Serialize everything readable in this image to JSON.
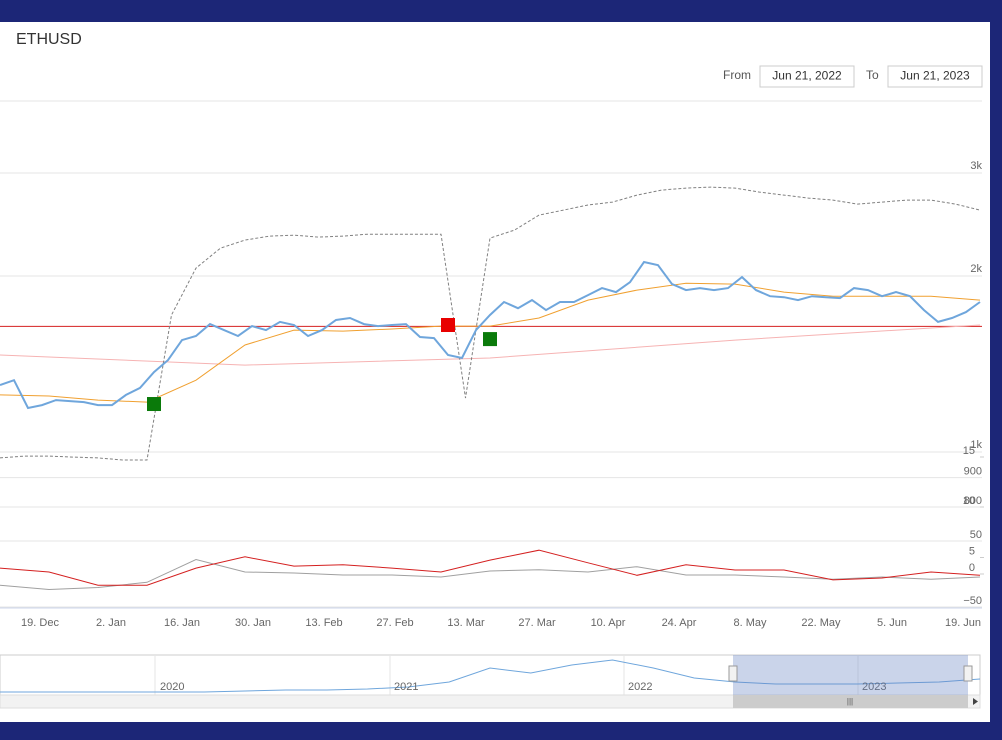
{
  "header": {
    "title": "ETHUSD",
    "from_label": "From",
    "from_date": "Jun 21, 2022",
    "to_label": "To",
    "to_date": "Jun 21, 2023"
  },
  "chart_data": [
    {
      "type": "line",
      "log_scale": true,
      "ylim": [
        1000,
        4000
      ],
      "yticks": [
        {
          "value": 1000,
          "label": "1k"
        },
        {
          "value": 2000,
          "label": "2k"
        },
        {
          "value": 3000,
          "label": "3k"
        }
      ],
      "xticks": [
        "19. Dec",
        "2. Jan",
        "16. Jan",
        "30. Jan",
        "13. Feb",
        "27. Feb",
        "13. Mar",
        "27. Mar",
        "10. Apr",
        "24. Apr",
        "8. May",
        "22. May",
        "5. Jun",
        "19. Jun"
      ],
      "hline": {
        "value": 1640,
        "color": "#d42020"
      },
      "series": [
        {
          "color": "#f6b3b3",
          "values": [
            1465,
            1408,
            1448,
            1554,
            1649
          ]
        },
        {
          "color": "#808080",
          "dash": true,
          "values": [
            977,
            984,
            984,
            980,
            977,
            969,
            969,
            1715,
            2063,
            2232,
            2304,
            2340,
            2349,
            2331,
            2340,
            2358,
            2358,
            2358,
            2358,
            1237,
            2322,
            2396,
            2542,
            2593,
            2645,
            2676,
            2750,
            2805,
            2827,
            2838,
            2827,
            2783,
            2750,
            2718,
            2697,
            2655,
            2676,
            2697,
            2697,
            2655,
            2593
          ]
        },
        {
          "color": "#f0a030",
          "values": [
            1252,
            1247,
            1227,
            1217,
            1327,
            1524,
            1616,
            1610,
            1623,
            1642,
            1642,
            1695,
            1819,
            1892,
            1944,
            1937,
            1877,
            1847,
            1847,
            1847,
            1819
          ]
        },
        {
          "color": "#6fa6dc",
          "width": 2,
          "values": [
            1302,
            1327,
            1189,
            1203,
            1227,
            1222,
            1217,
            1203,
            1203,
            1252,
            1287,
            1370,
            1436,
            1554,
            1579,
            1655,
            1616,
            1579,
            1642,
            1616,
            1669,
            1649,
            1579,
            1616,
            1682,
            1695,
            1655,
            1642,
            1649,
            1655,
            1573,
            1566,
            1465,
            1448,
            1616,
            1715,
            1805,
            1762,
            1819,
            1749,
            1805,
            1805,
            1855,
            1907,
            1877,
            1952,
            2113,
            2088,
            1937,
            1892,
            1907,
            1892,
            1907,
            1991,
            1892,
            1847,
            1840,
            1819,
            1847,
            1840,
            1833,
            1907,
            1892,
            1847,
            1877,
            1847,
            1749,
            1669,
            1695,
            1735,
            1805
          ]
        },
        {
          "color": "#0a7a0a",
          "marker": "square",
          "values": [
            null,
            null,
            null,
            null,
            null,
            null,
            null,
            null,
            null,
            null,
            null,
            1208,
            null,
            null,
            null,
            null,
            null,
            null,
            null,
            null,
            null,
            null,
            null,
            null,
            null,
            null,
            null,
            null,
            null,
            null,
            null,
            null,
            null,
            null,
            null,
            1560,
            null,
            null,
            null,
            null,
            null,
            null,
            null,
            null,
            null,
            null,
            null,
            null,
            null,
            null,
            null,
            null,
            null,
            null,
            null,
            null,
            null,
            null,
            null,
            null,
            null,
            null,
            null,
            null,
            null,
            null,
            null,
            null,
            null,
            null,
            null
          ]
        },
        {
          "color": "#e80000",
          "marker": "square",
          "values": [
            null,
            null,
            null,
            null,
            null,
            null,
            null,
            null,
            null,
            null,
            null,
            null,
            null,
            null,
            null,
            null,
            null,
            null,
            null,
            null,
            null,
            null,
            null,
            null,
            null,
            null,
            null,
            null,
            null,
            null,
            null,
            null,
            1649,
            null,
            null,
            null,
            null,
            null,
            null,
            null,
            null,
            null,
            null,
            null,
            null,
            null,
            null,
            null,
            null,
            null,
            null,
            null,
            null,
            null,
            null,
            null,
            null,
            null,
            null,
            null,
            null,
            null,
            null,
            null,
            null,
            null,
            null,
            null,
            null,
            null,
            null
          ]
        }
      ]
    },
    {
      "type": "line",
      "ylim": [
        800,
        970
      ],
      "yticks": [
        800,
        900
      ],
      "y2lim": [
        10,
        15
      ],
      "y2ticks": [
        10,
        15
      ],
      "series": []
    },
    {
      "type": "line",
      "ylim": [
        -50,
        50
      ],
      "yticks": [
        {
          "value": -50,
          "label": "−50"
        },
        50
      ],
      "y2lim": [
        -10,
        10
      ],
      "y2ticks": [
        0,
        5
      ],
      "series": [
        {
          "color": "#a0a0a0",
          "axis": "y2",
          "values": [
            -3.4,
            -4.7,
            -4.1,
            -2.5,
            4.4,
            0.6,
            0.3,
            -0.3,
            -0.3,
            -0.9,
            0.9,
            1.3,
            0.6,
            2.2,
            -0.3,
            -0.3,
            -0.9,
            -1.6,
            -0.9,
            -1.6,
            -0.9
          ]
        },
        {
          "color": "#d42020",
          "values": [
            9,
            3,
            -17,
            -17,
            9,
            26,
            12,
            14,
            9,
            3,
            21,
            36,
            17,
            -2,
            14,
            6,
            6,
            -9,
            -6,
            3,
            -2
          ]
        }
      ]
    },
    {
      "type": "area",
      "ylim": [
        0,
        5000
      ],
      "xticks": [
        "2020",
        "2021",
        "2022",
        "2023"
      ],
      "color": "#6fa6dc",
      "values": [
        375,
        375,
        375,
        375,
        375,
        375,
        500,
        625,
        625,
        750,
        1000,
        1625,
        3375,
        2750,
        3750,
        4375,
        3375,
        2125,
        1625,
        1375,
        1375,
        1375,
        1500,
        1625,
        2000
      ]
    }
  ]
}
